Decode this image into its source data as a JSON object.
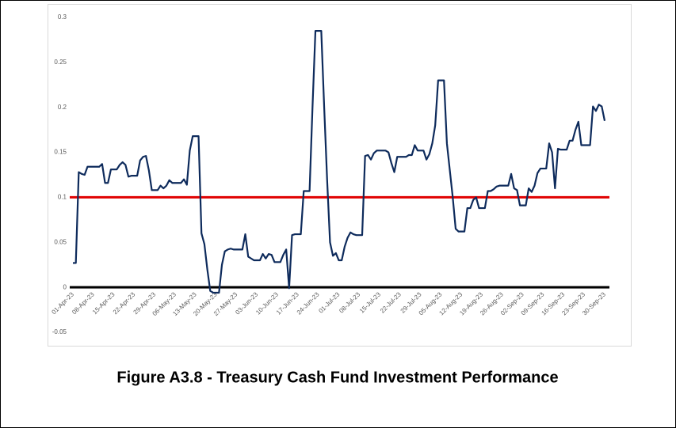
{
  "chart_data": {
    "type": "line",
    "title": "Figure A3.8 - Treasury Cash Fund Investment Performance",
    "categories": [
      "01-Apr-23",
      null,
      null,
      null,
      null,
      null,
      null,
      "08-Apr-23",
      null,
      null,
      null,
      null,
      null,
      null,
      "15-Apr-23",
      null,
      null,
      null,
      null,
      null,
      null,
      "22-Apr-23",
      null,
      null,
      null,
      null,
      null,
      null,
      "29-Apr-23",
      null,
      null,
      null,
      null,
      null,
      null,
      "06-May-23",
      null,
      null,
      null,
      null,
      null,
      null,
      "13-May-23",
      null,
      null,
      null,
      null,
      null,
      null,
      "20-May-23",
      null,
      null,
      null,
      null,
      null,
      null,
      "27-May-23",
      null,
      null,
      null,
      null,
      null,
      null,
      "03-Jun-23",
      null,
      null,
      null,
      null,
      null,
      null,
      "10-Jun-23",
      null,
      null,
      null,
      null,
      null,
      null,
      "17-Jun-23",
      null,
      null,
      null,
      null,
      null,
      null,
      "24-Jun-23",
      null,
      null,
      null,
      null,
      null,
      null,
      "01-Jul-23",
      null,
      null,
      null,
      null,
      null,
      null,
      "08-Jul-23",
      null,
      null,
      null,
      null,
      null,
      null,
      "15-Jul-23",
      null,
      null,
      null,
      null,
      null,
      null,
      "22-Jul-23",
      null,
      null,
      null,
      null,
      null,
      null,
      "29-Jul-23",
      null,
      null,
      null,
      null,
      null,
      null,
      "05-Aug-23",
      null,
      null,
      null,
      null,
      null,
      null,
      "12-Aug-23",
      null,
      null,
      null,
      null,
      null,
      null,
      "19-Aug-23",
      null,
      null,
      null,
      null,
      null,
      null,
      "26-Aug-23",
      null,
      null,
      null,
      null,
      null,
      null,
      "02-Sep-23",
      null,
      null,
      null,
      null,
      null,
      null,
      "09-Sep-23",
      null,
      null,
      null,
      null,
      null,
      null,
      "16-Sep-23",
      null,
      null,
      null,
      null,
      null,
      null,
      "23-Sep-23",
      null,
      null,
      null,
      null,
      null,
      null,
      "30-Sep-23"
    ],
    "values": [
      0.027,
      0.027,
      0.128,
      0.126,
      0.125,
      0.134,
      0.134,
      0.134,
      0.134,
      0.134,
      0.137,
      0.116,
      0.116,
      0.131,
      0.131,
      0.131,
      0.136,
      0.139,
      0.136,
      0.123,
      0.124,
      0.124,
      0.124,
      0.141,
      0.145,
      0.146,
      0.13,
      0.108,
      0.108,
      0.108,
      0.113,
      0.11,
      0.113,
      0.119,
      0.116,
      0.116,
      0.116,
      0.116,
      0.12,
      0.114,
      0.152,
      0.168,
      0.168,
      0.168,
      0.06,
      0.048,
      0.02,
      -0.004,
      -0.006,
      -0.006,
      -0.006,
      0.025,
      0.04,
      0.042,
      0.043,
      0.042,
      0.042,
      0.042,
      0.042,
      0.059,
      0.034,
      0.032,
      0.03,
      0.03,
      0.03,
      0.037,
      0.032,
      0.037,
      0.036,
      0.028,
      0.028,
      0.028,
      0.036,
      0.042,
      -0.001,
      0.058,
      0.059,
      0.059,
      0.059,
      0.107,
      0.107,
      0.107,
      0.2,
      0.285,
      0.285,
      0.285,
      0.2,
      0.12,
      0.05,
      0.035,
      0.038,
      0.03,
      0.03,
      0.045,
      0.055,
      0.061,
      0.059,
      0.058,
      0.058,
      0.058,
      0.146,
      0.147,
      0.142,
      0.149,
      0.152,
      0.152,
      0.152,
      0.152,
      0.15,
      0.138,
      0.128,
      0.145,
      0.145,
      0.145,
      0.145,
      0.147,
      0.147,
      0.158,
      0.152,
      0.152,
      0.152,
      0.142,
      0.148,
      0.16,
      0.18,
      0.23,
      0.23,
      0.23,
      0.16,
      0.13,
      0.1,
      0.065,
      0.062,
      0.062,
      0.062,
      0.088,
      0.088,
      0.097,
      0.1,
      0.088,
      0.088,
      0.088,
      0.107,
      0.107,
      0.109,
      0.112,
      0.113,
      0.113,
      0.113,
      0.113,
      0.126,
      0.11,
      0.108,
      0.091,
      0.091,
      0.091,
      0.11,
      0.106,
      0.113,
      0.127,
      0.132,
      0.132,
      0.132,
      0.16,
      0.15,
      0.11,
      0.154,
      0.153,
      0.153,
      0.153,
      0.163,
      0.163,
      0.175,
      0.184,
      0.158,
      0.158,
      0.158,
      0.158,
      0.201,
      0.196,
      0.203,
      0.201,
      0.185
    ],
    "color": "#0e2b5c",
    "threshold": 0.1,
    "threshold_color": "#e00000",
    "ylim": [
      -0.05,
      0.3
    ],
    "yticks": [
      -0.05,
      0,
      0.05,
      0.1,
      0.15,
      0.2,
      0.25,
      0.3
    ],
    "grid": false
  }
}
